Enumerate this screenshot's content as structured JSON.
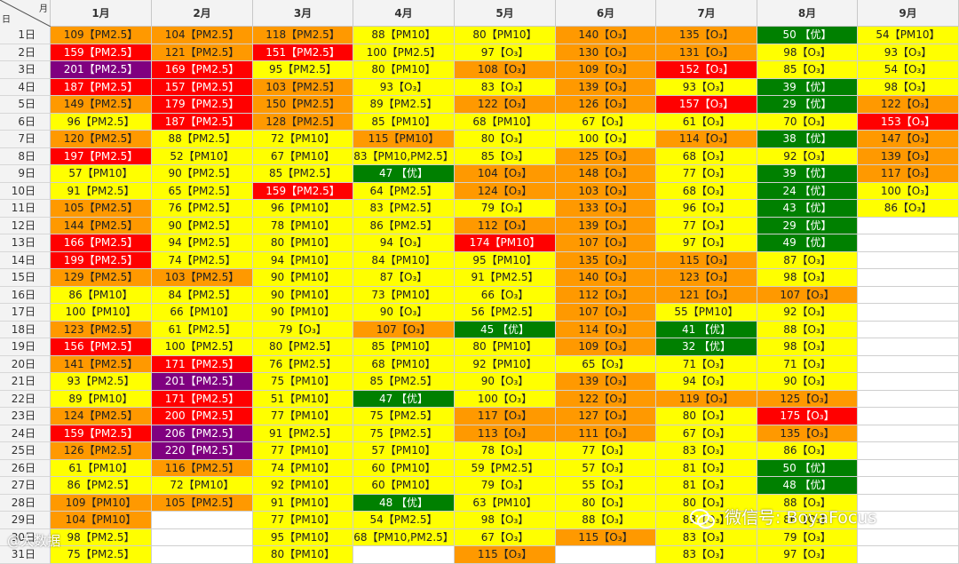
{
  "header": {
    "corner_month_label": "月",
    "corner_day_label": "日",
    "months": [
      "1月",
      "2月",
      "3月",
      "4月",
      "5月",
      "6月",
      "7月",
      "8月",
      "9月"
    ]
  },
  "days": [
    "1日",
    "2日",
    "3日",
    "4日",
    "5日",
    "6日",
    "7日",
    "8日",
    "9日",
    "10日",
    "11日",
    "12日",
    "13日",
    "14日",
    "15日",
    "16日",
    "17日",
    "18日",
    "19日",
    "20日",
    "21日",
    "22日",
    "23日",
    "24日",
    "25日",
    "26日",
    "27日",
    "28日",
    "29日",
    "30日",
    "31日"
  ],
  "colors": {
    "yellow": "#ffff00",
    "orange": "#ff9900",
    "red": "#ff0000",
    "purple": "#800080",
    "green": "#008000",
    "empty": "#ffffff"
  },
  "table": [
    [
      [
        "109【PM2.5】",
        "orange"
      ],
      [
        "104【PM2.5】",
        "orange"
      ],
      [
        "118【PM2.5】",
        "orange"
      ],
      [
        "88【PM10】",
        "yellow"
      ],
      [
        "80【PM10】",
        "yellow"
      ],
      [
        "140【O₃】",
        "orange"
      ],
      [
        "135【O₃】",
        "orange"
      ],
      [
        "50 【优】",
        "green"
      ],
      [
        "54【PM10】",
        "yellow"
      ]
    ],
    [
      [
        "159【PM2.5】",
        "red"
      ],
      [
        "121【PM2.5】",
        "orange"
      ],
      [
        "151【PM2.5】",
        "red"
      ],
      [
        "100【PM2.5】",
        "yellow"
      ],
      [
        "97【O₃】",
        "yellow"
      ],
      [
        "130【O₃】",
        "orange"
      ],
      [
        "131【O₃】",
        "orange"
      ],
      [
        "98【O₃】",
        "yellow"
      ],
      [
        "93【O₃】",
        "yellow"
      ]
    ],
    [
      [
        "201【PM2.5】",
        "purple"
      ],
      [
        "169【PM2.5】",
        "red"
      ],
      [
        "95【PM2.5】",
        "yellow"
      ],
      [
        "80【PM10】",
        "yellow"
      ],
      [
        "108【O₃】",
        "orange"
      ],
      [
        "109【O₃】",
        "orange"
      ],
      [
        "152【O₃】",
        "red"
      ],
      [
        "85【O₃】",
        "yellow"
      ],
      [
        "54【O₃】",
        "yellow"
      ]
    ],
    [
      [
        "187【PM2.5】",
        "red"
      ],
      [
        "157【PM2.5】",
        "red"
      ],
      [
        "103【PM2.5】",
        "orange"
      ],
      [
        "93【O₃】",
        "yellow"
      ],
      [
        "83【O₃】",
        "yellow"
      ],
      [
        "139【O₃】",
        "orange"
      ],
      [
        "93【O₃】",
        "yellow"
      ],
      [
        "39 【优】",
        "green"
      ],
      [
        "98【O₃】",
        "yellow"
      ]
    ],
    [
      [
        "149【PM2.5】",
        "orange"
      ],
      [
        "179【PM2.5】",
        "red"
      ],
      [
        "150【PM2.5】",
        "orange"
      ],
      [
        "89【PM2.5】",
        "yellow"
      ],
      [
        "122【O₃】",
        "orange"
      ],
      [
        "126【O₃】",
        "orange"
      ],
      [
        "157【O₃】",
        "red"
      ],
      [
        "29 【优】",
        "green"
      ],
      [
        "122【O₃】",
        "orange"
      ]
    ],
    [
      [
        "96【PM2.5】",
        "yellow"
      ],
      [
        "187【PM2.5】",
        "red"
      ],
      [
        "128【PM2.5】",
        "orange"
      ],
      [
        "85【PM10】",
        "yellow"
      ],
      [
        "68【PM10】",
        "yellow"
      ],
      [
        "67【O₃】",
        "yellow"
      ],
      [
        "61【O₃】",
        "yellow"
      ],
      [
        "70【O₃】",
        "yellow"
      ],
      [
        "153【O₃】",
        "red"
      ]
    ],
    [
      [
        "120【PM2.5】",
        "orange"
      ],
      [
        "88【PM2.5】",
        "yellow"
      ],
      [
        "72【PM10】",
        "yellow"
      ],
      [
        "115【PM10】",
        "orange"
      ],
      [
        "80【O₃】",
        "yellow"
      ],
      [
        "100【O₃】",
        "yellow"
      ],
      [
        "114【O₃】",
        "orange"
      ],
      [
        "38 【优】",
        "green"
      ],
      [
        "147【O₃】",
        "orange"
      ]
    ],
    [
      [
        "197【PM2.5】",
        "red"
      ],
      [
        "52【PM10】",
        "yellow"
      ],
      [
        "67【PM10】",
        "yellow"
      ],
      [
        "83【PM10,PM2.5】",
        "yellow"
      ],
      [
        "85【O₃】",
        "yellow"
      ],
      [
        "125【O₃】",
        "orange"
      ],
      [
        "68【O₃】",
        "yellow"
      ],
      [
        "92【O₃】",
        "yellow"
      ],
      [
        "139【O₃】",
        "orange"
      ]
    ],
    [
      [
        "57【PM10】",
        "yellow"
      ],
      [
        "90【PM2.5】",
        "yellow"
      ],
      [
        "85【PM2.5】",
        "yellow"
      ],
      [
        "47 【优】",
        "green"
      ],
      [
        "104【O₃】",
        "orange"
      ],
      [
        "148【O₃】",
        "orange"
      ],
      [
        "77【O₃】",
        "yellow"
      ],
      [
        "39 【优】",
        "green"
      ],
      [
        "117【O₃】",
        "orange"
      ]
    ],
    [
      [
        "91【PM2.5】",
        "yellow"
      ],
      [
        "65【PM2.5】",
        "yellow"
      ],
      [
        "159【PM2.5】",
        "red"
      ],
      [
        "64【PM2.5】",
        "yellow"
      ],
      [
        "124【O₃】",
        "orange"
      ],
      [
        "103【O₃】",
        "orange"
      ],
      [
        "68【O₃】",
        "yellow"
      ],
      [
        "24 【优】",
        "green"
      ],
      [
        "100【O₃】",
        "yellow"
      ]
    ],
    [
      [
        "105【PM2.5】",
        "orange"
      ],
      [
        "76【PM2.5】",
        "yellow"
      ],
      [
        "96【PM10】",
        "yellow"
      ],
      [
        "83【PM2.5】",
        "yellow"
      ],
      [
        "79【O₃】",
        "yellow"
      ],
      [
        "133【O₃】",
        "orange"
      ],
      [
        "96【O₃】",
        "yellow"
      ],
      [
        "43 【优】",
        "green"
      ],
      [
        "86【O₃】",
        "yellow"
      ]
    ],
    [
      [
        "144【PM2.5】",
        "orange"
      ],
      [
        "90【PM2.5】",
        "yellow"
      ],
      [
        "78【PM10】",
        "yellow"
      ],
      [
        "86【PM2.5】",
        "yellow"
      ],
      [
        "112【O₃】",
        "orange"
      ],
      [
        "139【O₃】",
        "orange"
      ],
      [
        "77【O₃】",
        "yellow"
      ],
      [
        "29 【优】",
        "green"
      ],
      [
        "",
        "empty"
      ]
    ],
    [
      [
        "166【PM2.5】",
        "red"
      ],
      [
        "94【PM2.5】",
        "yellow"
      ],
      [
        "80【PM10】",
        "yellow"
      ],
      [
        "94【O₃】",
        "yellow"
      ],
      [
        "174【PM10】",
        "red"
      ],
      [
        "107【O₃】",
        "orange"
      ],
      [
        "97【O₃】",
        "yellow"
      ],
      [
        "49 【优】",
        "green"
      ],
      [
        "",
        "empty"
      ]
    ],
    [
      [
        "199【PM2.5】",
        "red"
      ],
      [
        "74【PM2.5】",
        "yellow"
      ],
      [
        "94【PM10】",
        "yellow"
      ],
      [
        "84【PM10】",
        "yellow"
      ],
      [
        "95【PM10】",
        "yellow"
      ],
      [
        "135【O₃】",
        "orange"
      ],
      [
        "115【O₃】",
        "orange"
      ],
      [
        "87【O₃】",
        "yellow"
      ],
      [
        "",
        "empty"
      ]
    ],
    [
      [
        "129【PM2.5】",
        "orange"
      ],
      [
        "103【PM2.5】",
        "orange"
      ],
      [
        "90【PM10】",
        "yellow"
      ],
      [
        "87【O₃】",
        "yellow"
      ],
      [
        "91【PM2.5】",
        "yellow"
      ],
      [
        "140【O₃】",
        "orange"
      ],
      [
        "123【O₃】",
        "orange"
      ],
      [
        "98【O₃】",
        "yellow"
      ],
      [
        "",
        "empty"
      ]
    ],
    [
      [
        "86【PM10】",
        "yellow"
      ],
      [
        "84【PM2.5】",
        "yellow"
      ],
      [
        "90【PM10】",
        "yellow"
      ],
      [
        "73【PM10】",
        "yellow"
      ],
      [
        "66【O₃】",
        "yellow"
      ],
      [
        "112【O₃】",
        "orange"
      ],
      [
        "121【O₃】",
        "orange"
      ],
      [
        "107【O₃】",
        "orange"
      ],
      [
        "",
        "empty"
      ]
    ],
    [
      [
        "100【PM10】",
        "yellow"
      ],
      [
        "66【PM10】",
        "yellow"
      ],
      [
        "90【PM10】",
        "yellow"
      ],
      [
        "90【O₃】",
        "yellow"
      ],
      [
        "56【PM2.5】",
        "yellow"
      ],
      [
        "107【O₃】",
        "orange"
      ],
      [
        "55【PM10】",
        "yellow"
      ],
      [
        "92【O₃】",
        "yellow"
      ],
      [
        "",
        "empty"
      ]
    ],
    [
      [
        "123【PM2.5】",
        "orange"
      ],
      [
        "61【PM2.5】",
        "yellow"
      ],
      [
        "79【O₃】",
        "yellow"
      ],
      [
        "107【O₃】",
        "orange"
      ],
      [
        "45 【优】",
        "green"
      ],
      [
        "114【O₃】",
        "orange"
      ],
      [
        "41 【优】",
        "green"
      ],
      [
        "88【O₃】",
        "yellow"
      ],
      [
        "",
        "empty"
      ]
    ],
    [
      [
        "156【PM2.5】",
        "red"
      ],
      [
        "100【PM2.5】",
        "yellow"
      ],
      [
        "80【PM2.5】",
        "yellow"
      ],
      [
        "85【PM10】",
        "yellow"
      ],
      [
        "80【PM10】",
        "yellow"
      ],
      [
        "109【O₃】",
        "orange"
      ],
      [
        "32 【优】",
        "green"
      ],
      [
        "98【O₃】",
        "yellow"
      ],
      [
        "",
        "empty"
      ]
    ],
    [
      [
        "141【PM2.5】",
        "orange"
      ],
      [
        "171【PM2.5】",
        "red"
      ],
      [
        "76【PM2.5】",
        "yellow"
      ],
      [
        "68【PM10】",
        "yellow"
      ],
      [
        "92【PM10】",
        "yellow"
      ],
      [
        "65【O₃】",
        "yellow"
      ],
      [
        "71【O₃】",
        "yellow"
      ],
      [
        "71【O₃】",
        "yellow"
      ],
      [
        "",
        "empty"
      ]
    ],
    [
      [
        "93【PM2.5】",
        "yellow"
      ],
      [
        "201【PM2.5】",
        "purple"
      ],
      [
        "75【PM10】",
        "yellow"
      ],
      [
        "85【PM2.5】",
        "yellow"
      ],
      [
        "90【O₃】",
        "yellow"
      ],
      [
        "139【O₃】",
        "orange"
      ],
      [
        "94【O₃】",
        "yellow"
      ],
      [
        "90【O₃】",
        "yellow"
      ],
      [
        "",
        "empty"
      ]
    ],
    [
      [
        "89【PM10】",
        "yellow"
      ],
      [
        "171【PM2.5】",
        "red"
      ],
      [
        "51【PM10】",
        "yellow"
      ],
      [
        "47 【优】",
        "green"
      ],
      [
        "100【O₃】",
        "yellow"
      ],
      [
        "122【O₃】",
        "orange"
      ],
      [
        "119【O₃】",
        "orange"
      ],
      [
        "125【O₃】",
        "orange"
      ],
      [
        "",
        "empty"
      ]
    ],
    [
      [
        "124【PM2.5】",
        "orange"
      ],
      [
        "200【PM2.5】",
        "red"
      ],
      [
        "77【PM10】",
        "yellow"
      ],
      [
        "75【PM2.5】",
        "yellow"
      ],
      [
        "117【O₃】",
        "orange"
      ],
      [
        "127【O₃】",
        "orange"
      ],
      [
        "80【O₃】",
        "yellow"
      ],
      [
        "175【O₃】",
        "red"
      ],
      [
        "",
        "empty"
      ]
    ],
    [
      [
        "159【PM2.5】",
        "red"
      ],
      [
        "206【PM2.5】",
        "purple"
      ],
      [
        "91【PM2.5】",
        "yellow"
      ],
      [
        "75【PM2.5】",
        "yellow"
      ],
      [
        "113【O₃】",
        "orange"
      ],
      [
        "111【O₃】",
        "orange"
      ],
      [
        "67【O₃】",
        "yellow"
      ],
      [
        "135【O₃】",
        "orange"
      ],
      [
        "",
        "empty"
      ]
    ],
    [
      [
        "126【PM2.5】",
        "orange"
      ],
      [
        "220【PM2.5】",
        "purple"
      ],
      [
        "77【PM10】",
        "yellow"
      ],
      [
        "57【PM10】",
        "yellow"
      ],
      [
        "78【O₃】",
        "yellow"
      ],
      [
        "77【O₃】",
        "yellow"
      ],
      [
        "83【O₃】",
        "yellow"
      ],
      [
        "86【O₃】",
        "yellow"
      ],
      [
        "",
        "empty"
      ]
    ],
    [
      [
        "61【PM10】",
        "yellow"
      ],
      [
        "116【PM2.5】",
        "orange"
      ],
      [
        "74【PM10】",
        "yellow"
      ],
      [
        "60【PM10】",
        "yellow"
      ],
      [
        "59【PM2.5】",
        "yellow"
      ],
      [
        "57【O₃】",
        "yellow"
      ],
      [
        "81【O₃】",
        "yellow"
      ],
      [
        "50 【优】",
        "green"
      ],
      [
        "",
        "empty"
      ]
    ],
    [
      [
        "86【PM2.5】",
        "yellow"
      ],
      [
        "72【PM10】",
        "yellow"
      ],
      [
        "92【PM10】",
        "yellow"
      ],
      [
        "60【PM10】",
        "yellow"
      ],
      [
        "79【O₃】",
        "yellow"
      ],
      [
        "55【O₃】",
        "yellow"
      ],
      [
        "81【O₃】",
        "yellow"
      ],
      [
        "48 【优】",
        "green"
      ],
      [
        "",
        "empty"
      ]
    ],
    [
      [
        "109【PM10】",
        "orange"
      ],
      [
        "105【PM2.5】",
        "orange"
      ],
      [
        "91【PM10】",
        "yellow"
      ],
      [
        "48 【优】",
        "green"
      ],
      [
        "63【PM10】",
        "yellow"
      ],
      [
        "80【O₃】",
        "yellow"
      ],
      [
        "80【O₃】",
        "yellow"
      ],
      [
        "88【O₃】",
        "yellow"
      ],
      [
        "",
        "empty"
      ]
    ],
    [
      [
        "104【PM10】",
        "orange"
      ],
      [
        "",
        "empty"
      ],
      [
        "77【PM10】",
        "yellow"
      ],
      [
        "54【PM2.5】",
        "yellow"
      ],
      [
        "98【O₃】",
        "yellow"
      ],
      [
        "88【O₃】",
        "yellow"
      ],
      [
        "83【O₃】",
        "yellow"
      ],
      [
        "86【O₃】",
        "yellow"
      ],
      [
        "",
        "empty"
      ]
    ],
    [
      [
        "98【PM2.5】",
        "yellow"
      ],
      [
        "",
        "empty"
      ],
      [
        "95【PM10】",
        "yellow"
      ],
      [
        "68【PM10,PM2.5】",
        "yellow"
      ],
      [
        "67【O₃】",
        "yellow"
      ],
      [
        "115【O₃】",
        "orange"
      ],
      [
        "83【O₃】",
        "yellow"
      ],
      [
        "79【O₃】",
        "yellow"
      ],
      [
        "",
        "empty"
      ]
    ],
    [
      [
        "75【PM2.5】",
        "yellow"
      ],
      [
        "",
        "empty"
      ],
      [
        "80【PM10】",
        "yellow"
      ],
      [
        "",
        "empty"
      ],
      [
        "115【O₃】",
        "orange"
      ],
      [
        "",
        "empty"
      ],
      [
        "83【O₃】",
        "yellow"
      ],
      [
        "97【O₃】",
        "yellow"
      ],
      [
        "",
        "empty"
      ]
    ]
  ],
  "watermarks": {
    "right_text": "微信号: BoyaFocus",
    "left_text": "@大数据"
  }
}
